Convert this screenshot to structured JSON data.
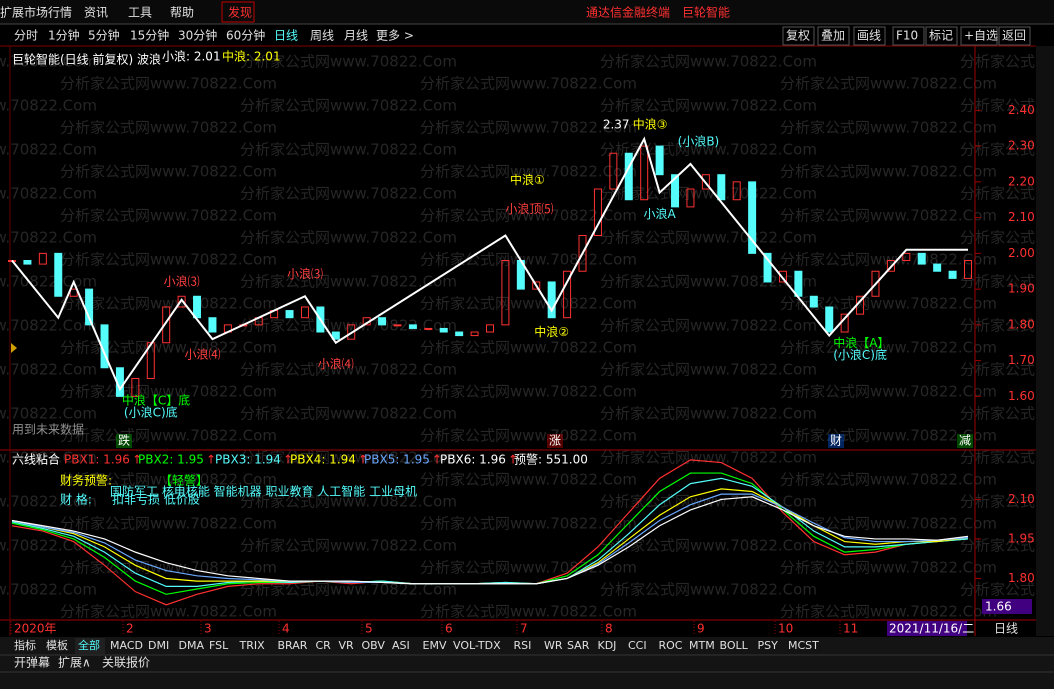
{
  "menu": {
    "items": [
      "扩展市场行情",
      "资讯",
      "工具",
      "帮助",
      "发现"
    ],
    "app_title": "通达信金融终端",
    "stock": "巨轮智能"
  },
  "toolbar": {
    "periods": [
      "分时",
      "1分钟",
      "5分钟",
      "15分钟",
      "30分钟",
      "60分钟",
      "日线",
      "周线",
      "月线",
      "更多 >"
    ],
    "active_index": 6,
    "buttons": [
      "复权",
      "叠加",
      "画线",
      "F10",
      "标记",
      "+自选",
      "返回"
    ]
  },
  "watermark": "分析家公式网www.70822.Com",
  "chart_data": [
    {
      "type": "candlestick",
      "title": "巨轮智能(日线 前复权) 波浪",
      "legend": [
        {
          "text": "小浪: 2.01",
          "color": "#ffffff"
        },
        {
          "text": "中浪: 2.01",
          "color": "#ffff00"
        }
      ],
      "up_color": "#ff3232",
      "down_color": "#54fcfc",
      "values": [
        1.98,
        1.97,
        2.0,
        1.88,
        1.9,
        1.8,
        1.68,
        1.6,
        1.65,
        1.75,
        1.85,
        1.88,
        1.82,
        1.78,
        1.8,
        1.8,
        1.82,
        1.84,
        1.82,
        1.85,
        1.78,
        1.76,
        1.8,
        1.82,
        1.8,
        1.8,
        1.79,
        1.79,
        1.78,
        1.77,
        1.78,
        1.8,
        1.98,
        1.9,
        1.92,
        1.82,
        1.95,
        2.05,
        2.18,
        2.28,
        2.15,
        2.3,
        2.22,
        2.13,
        2.18,
        2.22,
        2.15,
        2.2,
        2.0,
        1.92,
        1.95,
        1.88,
        1.85,
        1.78,
        1.83,
        1.88,
        1.95,
        1.98,
        2.0,
        1.97,
        1.95,
        1.93,
        1.98
      ],
      "overlays": [
        {
          "type": "line",
          "color": "#ffffff",
          "x": [
            0,
            3,
            4,
            7,
            11,
            13,
            19,
            21,
            32,
            35,
            41,
            42,
            44,
            53,
            58,
            62
          ],
          "values": [
            1.98,
            1.82,
            1.92,
            1.62,
            1.87,
            1.76,
            1.88,
            1.75,
            2.05,
            1.84,
            2.32,
            2.17,
            2.25,
            1.77,
            2.01,
            2.01
          ]
        }
      ],
      "annotations": [
        {
          "text": "中浪【C】底",
          "color": "#00ff00"
        },
        {
          "text": "(小浪C)底",
          "color": "#54fcfc"
        },
        {
          "text": "小浪⑶",
          "color": "#ff4040"
        },
        {
          "text": "小浪⑷",
          "color": "#ff4040"
        },
        {
          "text": "小浪⑶",
          "color": "#ff4040"
        },
        {
          "text": "小浪⑷",
          "color": "#ff4040"
        },
        {
          "text": "中浪①",
          "color": "#ffff00"
        },
        {
          "text": "小浪顶⑸",
          "color": "#ff4040"
        },
        {
          "text": "中浪②",
          "color": "#ffff00"
        },
        {
          "text": "2.37",
          "color": "#ffffff"
        },
        {
          "text": "中浪③",
          "color": "#ffff00"
        },
        {
          "text": "(小浪B)",
          "color": "#54fcfc"
        },
        {
          "text": "小浪A",
          "color": "#54fcfc"
        },
        {
          "text": "中浪【A】",
          "color": "#00ff00"
        },
        {
          "text": "(小浪C)底",
          "color": "#54fcfc"
        }
      ],
      "note": "用到未来数据",
      "markers": [
        {
          "text": "跌",
          "color": "#00a000"
        },
        {
          "text": "涨",
          "color": "#c00000"
        },
        {
          "text": "财",
          "color": "#0050d0"
        },
        {
          "text": "减",
          "color": "#00a000"
        }
      ],
      "ylim": [
        1.45,
        2.58
      ],
      "yticks": [
        {
          "value": 2.4,
          "label": "2.40"
        },
        {
          "value": 2.3,
          "label": "2.30"
        },
        {
          "value": 2.2,
          "label": "2.20"
        },
        {
          "value": 2.1,
          "label": "2.10"
        },
        {
          "value": 2.0,
          "label": "2.00"
        },
        {
          "value": 1.9,
          "label": "1.90"
        },
        {
          "value": 1.8,
          "label": "1.80"
        },
        {
          "value": 1.7,
          "label": "1.70"
        },
        {
          "value": 1.6,
          "label": "1.60"
        }
      ]
    },
    {
      "type": "line",
      "title": "六线粘合",
      "legend": [
        "PBX1: 1.96",
        "PBX2: 1.95",
        "PBX3: 1.94",
        "PBX4: 1.94",
        "PBX5: 1.95",
        "PBX6: 1.96"
      ],
      "arrow": "↑",
      "alert": "预警: 551.00",
      "series": [
        {
          "color": "#ff3030",
          "values": [
            2.0,
            1.98,
            1.94,
            1.85,
            1.75,
            1.7,
            1.74,
            1.77,
            1.78,
            1.78,
            1.79,
            1.78,
            1.79,
            1.78,
            1.78,
            1.78,
            1.785,
            1.78,
            1.82,
            1.92,
            2.05,
            2.18,
            2.25,
            2.24,
            2.18,
            2.05,
            1.94,
            1.89,
            1.9,
            1.93,
            1.94,
            1.95
          ]
        },
        {
          "color": "#00ff00",
          "values": [
            2.01,
            1.985,
            1.95,
            1.88,
            1.79,
            1.74,
            1.76,
            1.78,
            1.785,
            1.785,
            1.79,
            1.785,
            1.79,
            1.78,
            1.78,
            1.78,
            1.785,
            1.78,
            1.81,
            1.89,
            2.01,
            2.13,
            2.2,
            2.2,
            2.16,
            2.06,
            1.96,
            1.9,
            1.91,
            1.93,
            1.94,
            1.95
          ]
        },
        {
          "color": "#54fcfc",
          "values": [
            2.015,
            1.99,
            1.96,
            1.9,
            1.82,
            1.77,
            1.77,
            1.785,
            1.79,
            1.785,
            1.79,
            1.785,
            1.79,
            1.78,
            1.78,
            1.78,
            1.785,
            1.78,
            1.8,
            1.87,
            1.97,
            2.08,
            2.16,
            2.18,
            2.15,
            2.07,
            1.98,
            1.92,
            1.92,
            1.93,
            1.94,
            1.95
          ]
        },
        {
          "color": "#ffff00",
          "values": [
            2.02,
            1.995,
            1.97,
            1.92,
            1.85,
            1.8,
            1.79,
            1.79,
            1.79,
            1.79,
            1.79,
            1.785,
            1.785,
            1.78,
            1.78,
            1.78,
            1.78,
            1.78,
            1.8,
            1.86,
            1.95,
            2.04,
            2.11,
            2.14,
            2.13,
            2.07,
            2.0,
            1.94,
            1.93,
            1.94,
            1.94,
            1.955
          ]
        },
        {
          "color": "#6aa8ff",
          "values": [
            2.02,
            1.995,
            1.975,
            1.935,
            1.87,
            1.83,
            1.81,
            1.8,
            1.795,
            1.79,
            1.79,
            1.785,
            1.785,
            1.78,
            1.78,
            1.78,
            1.78,
            1.78,
            1.8,
            1.855,
            1.935,
            2.02,
            2.08,
            2.12,
            2.12,
            2.07,
            2.01,
            1.955,
            1.94,
            1.94,
            1.945,
            1.955
          ]
        },
        {
          "color": "#ffffff",
          "values": [
            2.02,
            2.0,
            1.98,
            1.95,
            1.9,
            1.86,
            1.83,
            1.81,
            1.8,
            1.79,
            1.79,
            1.79,
            1.785,
            1.78,
            1.78,
            1.78,
            1.78,
            1.78,
            1.8,
            1.85,
            1.92,
            2.0,
            2.06,
            2.1,
            2.11,
            2.06,
            2.0,
            1.96,
            1.95,
            1.95,
            1.945,
            1.96
          ]
        }
      ],
      "notes": [
        {
          "text": "财务预警:",
          "color": "#ffff00"
        },
        {
          "text": "【轻警】",
          "color": "#00ff00"
        },
        {
          "text": "国防军工 核电核能 智能机器 职业教育 人工智能 工业母机",
          "color": "#54fcfc"
        },
        {
          "text": "财   格:",
          "color": "#54fcfc"
        },
        {
          "text": "扣非亏损 低价股",
          "color": "#54fcfc"
        }
      ],
      "readout": "1.66",
      "ylim": [
        1.65,
        2.28
      ],
      "yticks": [
        {
          "value": 2.1,
          "label": "2.10"
        },
        {
          "value": 1.95,
          "label": "1.95"
        },
        {
          "value": 1.8,
          "label": "1.80"
        }
      ]
    }
  ],
  "x_axis": {
    "labels": [
      "2020年",
      "2",
      "3",
      "4",
      "5",
      "6",
      "7",
      "8",
      "9",
      "10",
      "11"
    ],
    "date": "2021/11/16/二",
    "period": "日线"
  },
  "tabs": {
    "items": [
      "指标",
      "模板",
      "全部",
      "MACD",
      "DMI",
      "DMA",
      "FSL",
      "TRIX",
      "BRAR",
      "CR",
      "VR",
      "OBV",
      "ASI",
      "EMV",
      "VOL-TDX",
      "RSI",
      "WR",
      "SAR",
      "KDJ",
      "CCI",
      "ROC",
      "MTM",
      "BOLL",
      "PSY",
      "MCST"
    ],
    "active_index": 2,
    "footer": [
      "开弹幕",
      "扩展∧",
      "关联报价"
    ]
  }
}
